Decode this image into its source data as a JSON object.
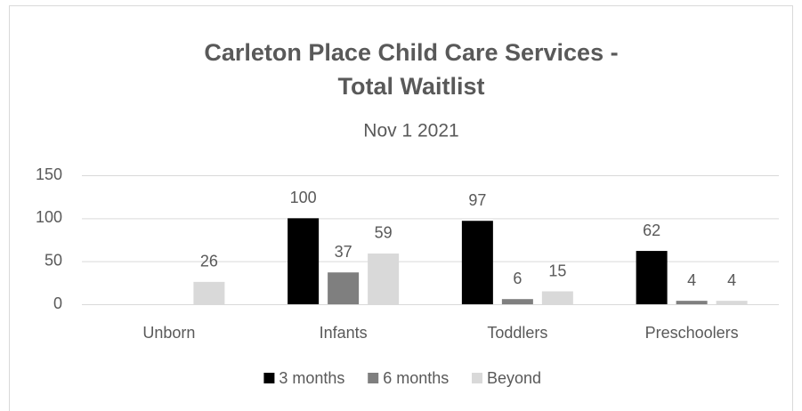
{
  "chart_data": {
    "type": "bar",
    "title": "Carleton Place Child Care Services - Total Waitlist",
    "subtitle": "Nov 1 2021",
    "categories": [
      "Unborn",
      "Infants",
      "Toddlers",
      "Preschoolers"
    ],
    "series": [
      {
        "name": "3 months",
        "color": "#000000",
        "values": [
          null,
          100,
          97,
          62
        ]
      },
      {
        "name": "6 months",
        "color": "#7f7f7f",
        "values": [
          null,
          37,
          6,
          4
        ]
      },
      {
        "name": "Beyond",
        "color": "#d9d9d9",
        "values": [
          26,
          59,
          15,
          4
        ]
      }
    ],
    "ylim": [
      0,
      150
    ],
    "yticks": [
      0,
      50,
      100,
      150
    ],
    "grid": true,
    "legend": "bottom",
    "data_labels": true
  }
}
